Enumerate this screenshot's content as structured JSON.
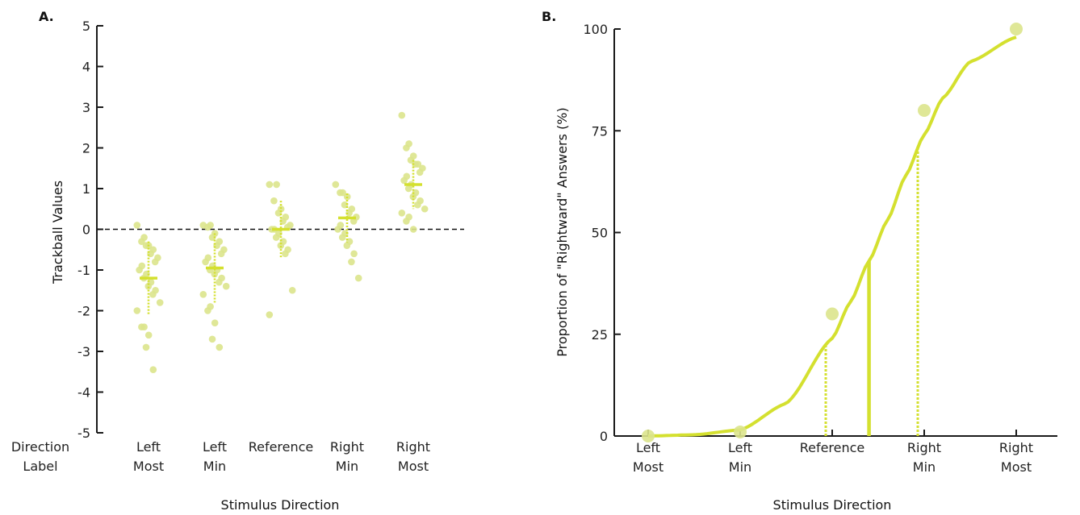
{
  "accent_color": "#d4e02f",
  "point_color": "#dbe48c",
  "chart_data": [
    {
      "panel_label": "A.",
      "type": "scatter",
      "xlabel": "Stimulus Direction",
      "ylabel": "Trackball Values",
      "ylim": [
        -5,
        5
      ],
      "y_ticks": [
        5,
        4,
        3,
        2,
        1,
        0,
        -1,
        -2,
        -3,
        -4,
        -5
      ],
      "row_label": [
        "Direction",
        "Label"
      ],
      "categories": [
        [
          "Left",
          "Most"
        ],
        [
          "Left",
          "Min"
        ],
        [
          "Reference"
        ],
        [
          "Right",
          "Min"
        ],
        [
          "Right",
          "Most"
        ]
      ],
      "reference_line_y": 0,
      "means": [
        -1.2,
        -0.95,
        0.0,
        0.28,
        1.1
      ],
      "sd": [
        0.9,
        0.85,
        0.7,
        0.6,
        0.6
      ],
      "points": [
        [
          0.1,
          -0.2,
          -0.3,
          -0.4,
          -0.4,
          -0.5,
          -0.6,
          -0.7,
          -0.8,
          -0.9,
          -1.0,
          -1.1,
          -1.2,
          -1.3,
          -1.4,
          -1.5,
          -1.6,
          -1.8,
          -2.0,
          -2.4,
          -2.4,
          -2.6,
          -2.9,
          -3.45
        ],
        [
          0.1,
          0.1,
          0.05,
          -0.1,
          -0.2,
          -0.3,
          -0.4,
          -0.5,
          -0.6,
          -0.7,
          -0.8,
          -0.9,
          -1.0,
          -1.0,
          -1.1,
          -1.2,
          -1.3,
          -1.4,
          -1.6,
          -1.9,
          -2.0,
          -2.3,
          -2.7,
          -2.9
        ],
        [
          1.1,
          1.1,
          0.7,
          0.5,
          0.4,
          0.3,
          0.2,
          0.1,
          0.05,
          0.0,
          0.0,
          -0.1,
          -0.2,
          -0.3,
          -0.4,
          -0.5,
          -0.6,
          -1.5,
          -2.1
        ],
        [
          1.1,
          0.9,
          0.9,
          0.8,
          0.6,
          0.5,
          0.4,
          0.3,
          0.2,
          0.1,
          0.0,
          -0.1,
          -0.2,
          -0.3,
          -0.4,
          -0.6,
          -0.8,
          -1.2
        ],
        [
          2.8,
          2.1,
          2.0,
          1.8,
          1.7,
          1.6,
          1.6,
          1.5,
          1.4,
          1.3,
          1.2,
          1.1,
          1.0,
          0.9,
          0.8,
          0.7,
          0.6,
          0.5,
          0.4,
          0.3,
          0.2,
          0.0
        ]
      ]
    },
    {
      "panel_label": "B.",
      "type": "line",
      "xlabel": "Stimulus Direction",
      "ylabel": "Proportion of \"Rightward\" Answers (%)",
      "ylim": [
        0,
        100
      ],
      "y_ticks": [
        100,
        75,
        50,
        25,
        0
      ],
      "categories": [
        [
          "Left",
          "Most"
        ],
        [
          "Left",
          "Min"
        ],
        [
          "Reference"
        ],
        [
          "Right",
          "Min"
        ],
        [
          "Right",
          "Most"
        ]
      ],
      "observed": [
        0,
        1,
        30,
        80,
        100
      ],
      "fit_x": [
        0,
        0.5,
        1,
        1.5,
        2,
        2.2,
        2.4,
        2.6,
        2.8,
        3,
        3.2,
        3.5,
        4
      ],
      "fit_y": [
        0,
        0.3,
        1.5,
        8,
        24,
        33,
        43,
        53,
        64,
        74,
        83,
        92,
        98
      ],
      "pse_x": 2.4,
      "threshold_x": [
        1.93,
        2.93
      ]
    }
  ]
}
